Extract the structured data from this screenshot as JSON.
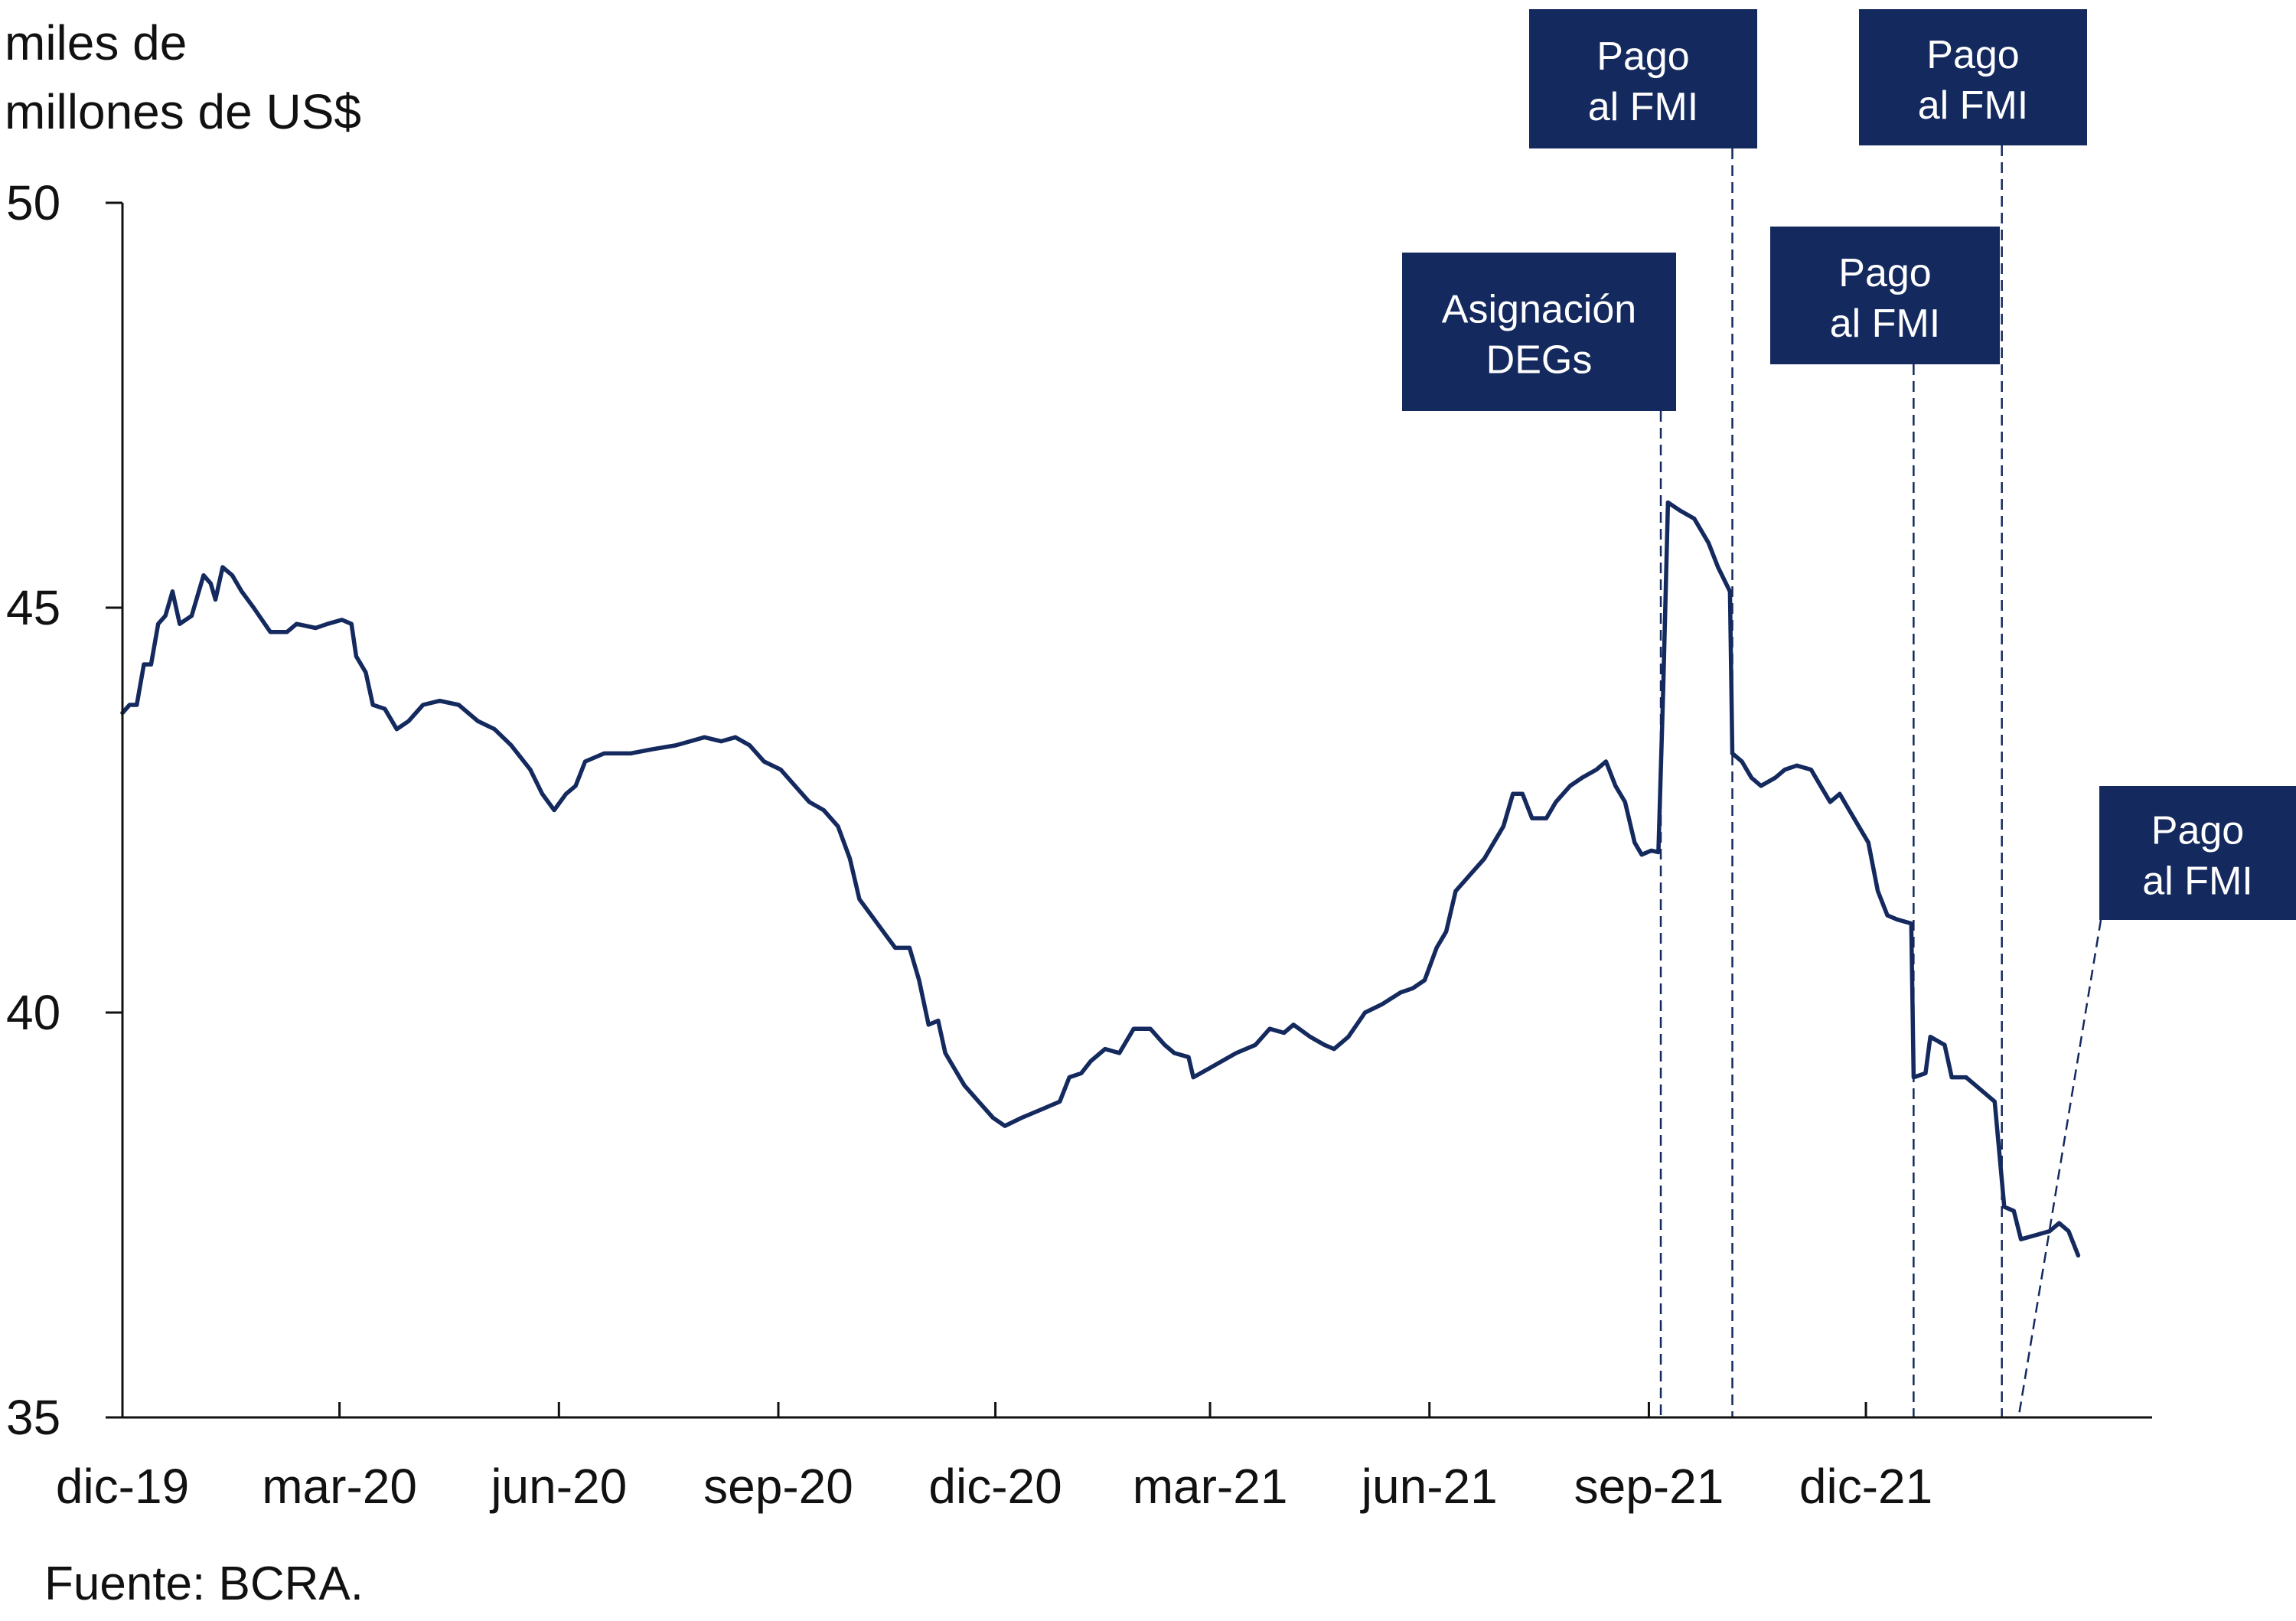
{
  "chart_data": {
    "type": "line",
    "title": "",
    "ylabel_lines": [
      "miles de",
      "millones de US$"
    ],
    "xlabel": "",
    "source": "Fuente: BCRA.",
    "ylim": [
      35,
      50
    ],
    "yticks": [
      35,
      40,
      45,
      50
    ],
    "xlim": [
      "2019-12-01",
      "2022-03-31"
    ],
    "xticks": [
      {
        "label": "dic-19",
        "date": "2019-12-01"
      },
      {
        "label": "mar-20",
        "date": "2020-03-01"
      },
      {
        "label": "jun-20",
        "date": "2020-06-01"
      },
      {
        "label": "sep-20",
        "date": "2020-09-01"
      },
      {
        "label": "dic-20",
        "date": "2020-12-01"
      },
      {
        "label": "mar-21",
        "date": "2021-03-01"
      },
      {
        "label": "jun-21",
        "date": "2021-06-01"
      },
      {
        "label": "sep-21",
        "date": "2021-09-01"
      },
      {
        "label": "dic-21",
        "date": "2021-12-01"
      }
    ],
    "grid": false,
    "line_color": "#14295e",
    "annotation_color": "#14295e",
    "series": [
      {
        "values": [
          [
            "2019-12-01",
            43.7
          ],
          [
            "2019-12-04",
            43.8
          ],
          [
            "2019-12-07",
            43.8
          ],
          [
            "2019-12-10",
            44.3
          ],
          [
            "2019-12-13",
            44.3
          ],
          [
            "2019-12-16",
            44.8
          ],
          [
            "2019-12-19",
            44.9
          ],
          [
            "2019-12-22",
            45.2
          ],
          [
            "2019-12-25",
            44.8
          ],
          [
            "2019-12-30",
            44.9
          ],
          [
            "2020-01-04",
            45.4
          ],
          [
            "2020-01-07",
            45.3
          ],
          [
            "2020-01-09",
            45.1
          ],
          [
            "2020-01-12",
            45.5
          ],
          [
            "2020-01-16",
            45.4
          ],
          [
            "2020-01-20",
            45.2
          ],
          [
            "2020-01-25",
            45.0
          ],
          [
            "2020-02-01",
            44.7
          ],
          [
            "2020-02-08",
            44.7
          ],
          [
            "2020-02-12",
            44.8
          ],
          [
            "2020-02-20",
            44.75
          ],
          [
            "2020-02-25",
            44.8
          ],
          [
            "2020-03-02",
            44.85
          ],
          [
            "2020-03-06",
            44.8
          ],
          [
            "2020-03-08",
            44.4
          ],
          [
            "2020-03-12",
            44.2
          ],
          [
            "2020-03-15",
            43.8
          ],
          [
            "2020-03-20",
            43.75
          ],
          [
            "2020-03-25",
            43.5
          ],
          [
            "2020-03-30",
            43.6
          ],
          [
            "2020-04-05",
            43.8
          ],
          [
            "2020-04-12",
            43.85
          ],
          [
            "2020-04-20",
            43.8
          ],
          [
            "2020-04-28",
            43.6
          ],
          [
            "2020-05-05",
            43.5
          ],
          [
            "2020-05-12",
            43.3
          ],
          [
            "2020-05-20",
            43.0
          ],
          [
            "2020-05-25",
            42.7
          ],
          [
            "2020-05-30",
            42.5
          ],
          [
            "2020-06-04",
            42.7
          ],
          [
            "2020-06-08",
            42.8
          ],
          [
            "2020-06-12",
            43.1
          ],
          [
            "2020-06-20",
            43.2
          ],
          [
            "2020-07-01",
            43.2
          ],
          [
            "2020-07-10",
            43.25
          ],
          [
            "2020-07-20",
            43.3
          ],
          [
            "2020-08-01",
            43.4
          ],
          [
            "2020-08-08",
            43.35
          ],
          [
            "2020-08-14",
            43.4
          ],
          [
            "2020-08-20",
            43.3
          ],
          [
            "2020-08-26",
            43.1
          ],
          [
            "2020-09-02",
            43.0
          ],
          [
            "2020-09-08",
            42.8
          ],
          [
            "2020-09-14",
            42.6
          ],
          [
            "2020-09-20",
            42.5
          ],
          [
            "2020-09-26",
            42.3
          ],
          [
            "2020-10-01",
            41.9
          ],
          [
            "2020-10-05",
            41.4
          ],
          [
            "2020-10-10",
            41.2
          ],
          [
            "2020-10-15",
            41.0
          ],
          [
            "2020-10-20",
            40.8
          ],
          [
            "2020-10-26",
            40.8
          ],
          [
            "2020-10-30",
            40.4
          ],
          [
            "2020-11-03",
            39.85
          ],
          [
            "2020-11-07",
            39.9
          ],
          [
            "2020-11-10",
            39.5
          ],
          [
            "2020-11-14",
            39.3
          ],
          [
            "2020-11-18",
            39.1
          ],
          [
            "2020-11-24",
            38.9
          ],
          [
            "2020-11-30",
            38.7
          ],
          [
            "2020-12-05",
            38.6
          ],
          [
            "2020-12-12",
            38.7
          ],
          [
            "2020-12-20",
            38.8
          ],
          [
            "2020-12-28",
            38.9
          ],
          [
            "2021-01-01",
            39.2
          ],
          [
            "2021-01-06",
            39.25
          ],
          [
            "2021-01-10",
            39.4
          ],
          [
            "2021-01-16",
            39.55
          ],
          [
            "2021-01-22",
            39.5
          ],
          [
            "2021-01-28",
            39.8
          ],
          [
            "2021-02-04",
            39.8
          ],
          [
            "2021-02-10",
            39.6
          ],
          [
            "2021-02-14",
            39.5
          ],
          [
            "2021-02-20",
            39.45
          ],
          [
            "2021-02-22",
            39.2
          ],
          [
            "2021-02-28",
            39.3
          ],
          [
            "2021-03-06",
            39.4
          ],
          [
            "2021-03-12",
            39.5
          ],
          [
            "2021-03-20",
            39.6
          ],
          [
            "2021-03-26",
            39.8
          ],
          [
            "2021-04-01",
            39.75
          ],
          [
            "2021-04-05",
            39.85
          ],
          [
            "2021-04-12",
            39.7
          ],
          [
            "2021-04-18",
            39.6
          ],
          [
            "2021-04-22",
            39.55
          ],
          [
            "2021-04-28",
            39.7
          ],
          [
            "2021-05-05",
            40.0
          ],
          [
            "2021-05-12",
            40.1
          ],
          [
            "2021-05-20",
            40.25
          ],
          [
            "2021-05-25",
            40.3
          ],
          [
            "2021-05-30",
            40.4
          ],
          [
            "2021-06-04",
            40.8
          ],
          [
            "2021-06-08",
            41.0
          ],
          [
            "2021-06-12",
            41.5
          ],
          [
            "2021-06-18",
            41.7
          ],
          [
            "2021-06-24",
            41.9
          ],
          [
            "2021-06-28",
            42.1
          ],
          [
            "2021-07-02",
            42.3
          ],
          [
            "2021-07-06",
            42.7
          ],
          [
            "2021-07-10",
            42.7
          ],
          [
            "2021-07-14",
            42.4
          ],
          [
            "2021-07-20",
            42.4
          ],
          [
            "2021-07-24",
            42.6
          ],
          [
            "2021-07-30",
            42.8
          ],
          [
            "2021-08-04",
            42.9
          ],
          [
            "2021-08-10",
            43.0
          ],
          [
            "2021-08-14",
            43.1
          ],
          [
            "2021-08-18",
            42.8
          ],
          [
            "2021-08-22",
            42.6
          ],
          [
            "2021-08-26",
            42.1
          ],
          [
            "2021-08-29",
            41.95
          ],
          [
            "2021-09-02",
            42.0
          ],
          [
            "2021-09-05",
            41.98
          ],
          [
            "2021-09-07",
            44.0
          ],
          [
            "2021-09-09",
            46.3
          ],
          [
            "2021-09-14",
            46.2
          ],
          [
            "2021-09-20",
            46.1
          ],
          [
            "2021-09-26",
            45.8
          ],
          [
            "2021-09-30",
            45.5
          ],
          [
            "2021-10-05",
            45.2
          ],
          [
            "2021-10-06",
            43.2
          ],
          [
            "2021-10-10",
            43.1
          ],
          [
            "2021-10-14",
            42.9
          ],
          [
            "2021-10-18",
            42.8
          ],
          [
            "2021-10-24",
            42.9
          ],
          [
            "2021-10-28",
            43.0
          ],
          [
            "2021-11-02",
            43.05
          ],
          [
            "2021-11-08",
            43.0
          ],
          [
            "2021-11-12",
            42.8
          ],
          [
            "2021-11-16",
            42.6
          ],
          [
            "2021-11-20",
            42.7
          ],
          [
            "2021-11-24",
            42.5
          ],
          [
            "2021-11-28",
            42.3
          ],
          [
            "2021-12-02",
            42.1
          ],
          [
            "2021-12-06",
            41.5
          ],
          [
            "2021-12-10",
            41.2
          ],
          [
            "2021-12-14",
            41.15
          ],
          [
            "2021-12-20",
            41.1
          ],
          [
            "2021-12-21",
            39.2
          ],
          [
            "2021-12-26",
            39.25
          ],
          [
            "2021-12-28",
            39.7
          ],
          [
            "2022-01-03",
            39.6
          ],
          [
            "2022-01-06",
            39.2
          ],
          [
            "2022-01-12",
            39.2
          ],
          [
            "2022-01-16",
            39.1
          ],
          [
            "2022-01-20",
            39.0
          ],
          [
            "2022-01-24",
            38.9
          ],
          [
            "2022-01-28",
            37.6
          ],
          [
            "2022-02-01",
            37.55
          ],
          [
            "2022-02-04",
            37.2
          ],
          [
            "2022-02-10",
            37.25
          ],
          [
            "2022-02-16",
            37.3
          ],
          [
            "2022-02-20",
            37.4
          ],
          [
            "2022-02-24",
            37.3
          ],
          [
            "2022-02-28",
            37.0
          ]
        ]
      }
    ],
    "annotations": [
      {
        "lines": [
          "Asignación",
          "DEGs"
        ],
        "date": "2021-09-06"
      },
      {
        "lines": [
          "Pago",
          "al FMI"
        ],
        "date": "2021-10-06"
      },
      {
        "lines": [
          "Pago",
          "al FMI"
        ],
        "date": "2021-12-21"
      },
      {
        "lines": [
          "Pago",
          "al FMI"
        ],
        "date": "2022-01-27"
      },
      {
        "lines": [
          "Pago",
          "al FMI"
        ],
        "date": "2022-02-03"
      }
    ]
  }
}
